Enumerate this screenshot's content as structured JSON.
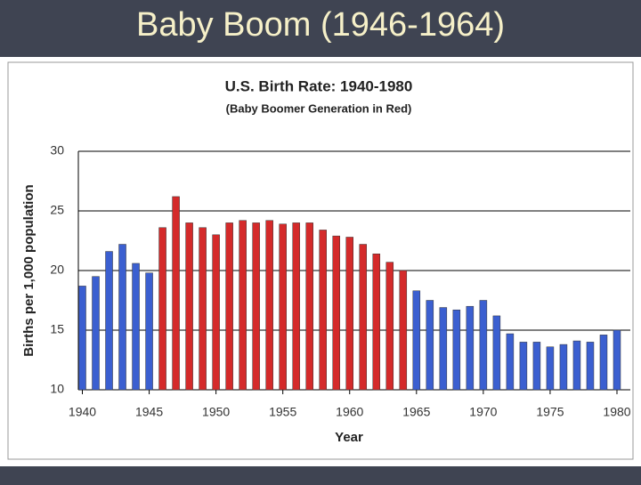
{
  "slide_title": "Baby Boom (1946-1964)",
  "chart_data": {
    "type": "bar",
    "title": "U.S. Birth Rate: 1940-1980",
    "subtitle": "(Baby Boomer Generation in Red)",
    "x_label": "Year",
    "y_label": "Births per 1,000 population",
    "x": [
      1940,
      1941,
      1942,
      1943,
      1944,
      1945,
      1946,
      1947,
      1948,
      1949,
      1950,
      1951,
      1952,
      1953,
      1954,
      1955,
      1956,
      1957,
      1958,
      1959,
      1960,
      1961,
      1962,
      1963,
      1964,
      1965,
      1966,
      1967,
      1968,
      1969,
      1970,
      1971,
      1972,
      1973,
      1974,
      1975,
      1976,
      1977,
      1978,
      1979,
      1980
    ],
    "values": [
      18.7,
      19.5,
      21.6,
      22.2,
      20.6,
      19.8,
      23.6,
      26.2,
      24.0,
      23.6,
      23.0,
      24.0,
      24.2,
      24.0,
      24.2,
      23.9,
      24.0,
      24.0,
      23.4,
      22.9,
      22.8,
      22.2,
      21.4,
      20.7,
      20.0,
      18.3,
      17.5,
      16.9,
      16.7,
      17.0,
      17.5,
      16.2,
      14.7,
      14.0,
      14.0,
      13.6,
      13.8,
      14.1,
      14.0,
      14.6,
      15.0
    ],
    "colors": [
      "#3b5fd0",
      "#3b5fd0",
      "#3b5fd0",
      "#3b5fd0",
      "#3b5fd0",
      "#3b5fd0",
      "#d42a2a",
      "#d42a2a",
      "#d42a2a",
      "#d42a2a",
      "#d42a2a",
      "#d42a2a",
      "#d42a2a",
      "#d42a2a",
      "#d42a2a",
      "#d42a2a",
      "#d42a2a",
      "#d42a2a",
      "#d42a2a",
      "#d42a2a",
      "#d42a2a",
      "#d42a2a",
      "#d42a2a",
      "#d42a2a",
      "#d42a2a",
      "#3b5fd0",
      "#3b5fd0",
      "#3b5fd0",
      "#3b5fd0",
      "#3b5fd0",
      "#3b5fd0",
      "#3b5fd0",
      "#3b5fd0",
      "#3b5fd0",
      "#3b5fd0",
      "#3b5fd0",
      "#3b5fd0",
      "#3b5fd0",
      "#3b5fd0",
      "#3b5fd0",
      "#3b5fd0"
    ],
    "xlim": [
      1939.7,
      1981
    ],
    "xticks": [
      1940,
      1945,
      1950,
      1955,
      1960,
      1965,
      1970,
      1975,
      1980
    ],
    "ylim": [
      10,
      30
    ],
    "yticks": [
      10,
      15,
      20,
      25,
      30
    ],
    "grid": true
  }
}
